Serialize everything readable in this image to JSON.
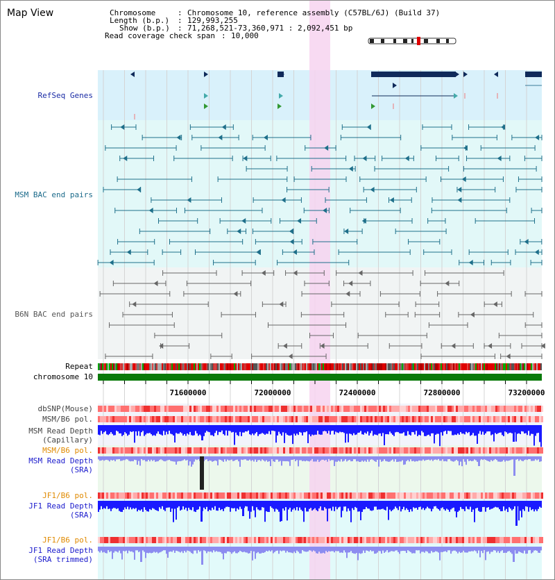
{
  "view": {
    "title": "Map View",
    "chromosome_key": "Chromosome",
    "chromosome_value": "Chromosome 10, reference assembly (C57BL/6J) (Build 37)",
    "length_key": "Length (b.p.)",
    "length_value": "129,993,255",
    "show_key": "Show (b.p.)",
    "show_value": "71,268,521-73,360,971 : 2,092,451 bp",
    "coverage_key": "Read coverage check span",
    "coverage_value": "10,000"
  },
  "tracks": {
    "refseq": "RefSeq Genes",
    "msm_bac": "MSM BAC end pairs",
    "b6n_bac": "B6N BAC end pairs",
    "repeat": "Repeat",
    "chromosome": "chromosome 10",
    "dbsnp": "dbSNP(Mouse)",
    "msm_b6_pol_1": "MSM/B6 pol.",
    "msm_depth_cap_1": "MSM Read Depth",
    "msm_depth_cap_2": "(Capillary)",
    "msm_b6_pol_2": "MSM/B6 pol.",
    "msm_depth_sra_1": "MSM Read Depth",
    "msm_depth_sra_2": "(SRA)",
    "jf1_pol_1": "JF1/B6 pol.",
    "jf1_depth_sra_1": "JF1 Read Depth",
    "jf1_depth_sra_2": "(SRA)",
    "jf1_pol_2": "JF1/B6 pol.",
    "jf1_depth_trim_1": "JF1 Read Depth",
    "jf1_depth_trim_2": "(SRA trimmed)"
  },
  "axis": {
    "ticks": [
      "71600000",
      "72000000",
      "72400000",
      "72800000",
      "73200000"
    ]
  },
  "colors": {
    "refseq_bg": "#d9f1fb",
    "msm_bg": "#e2f8f8",
    "b6n_bg": "#f1f4f4",
    "highlight": "#f7d3f0",
    "refseq_label": "#1a2ba5",
    "msm_label": "#1b6a8a",
    "b6n_label": "#555555",
    "gene": "#0f2a5a",
    "bac_msm": "#1e6f8a",
    "bac_b6n": "#666666",
    "chromosome_bar": "#0a7a0a",
    "orange_label": "#e08a00",
    "blue_label": "#1a1acc",
    "depth_dark": "#1a1aff",
    "depth_light": "#8c8cf0"
  }
}
